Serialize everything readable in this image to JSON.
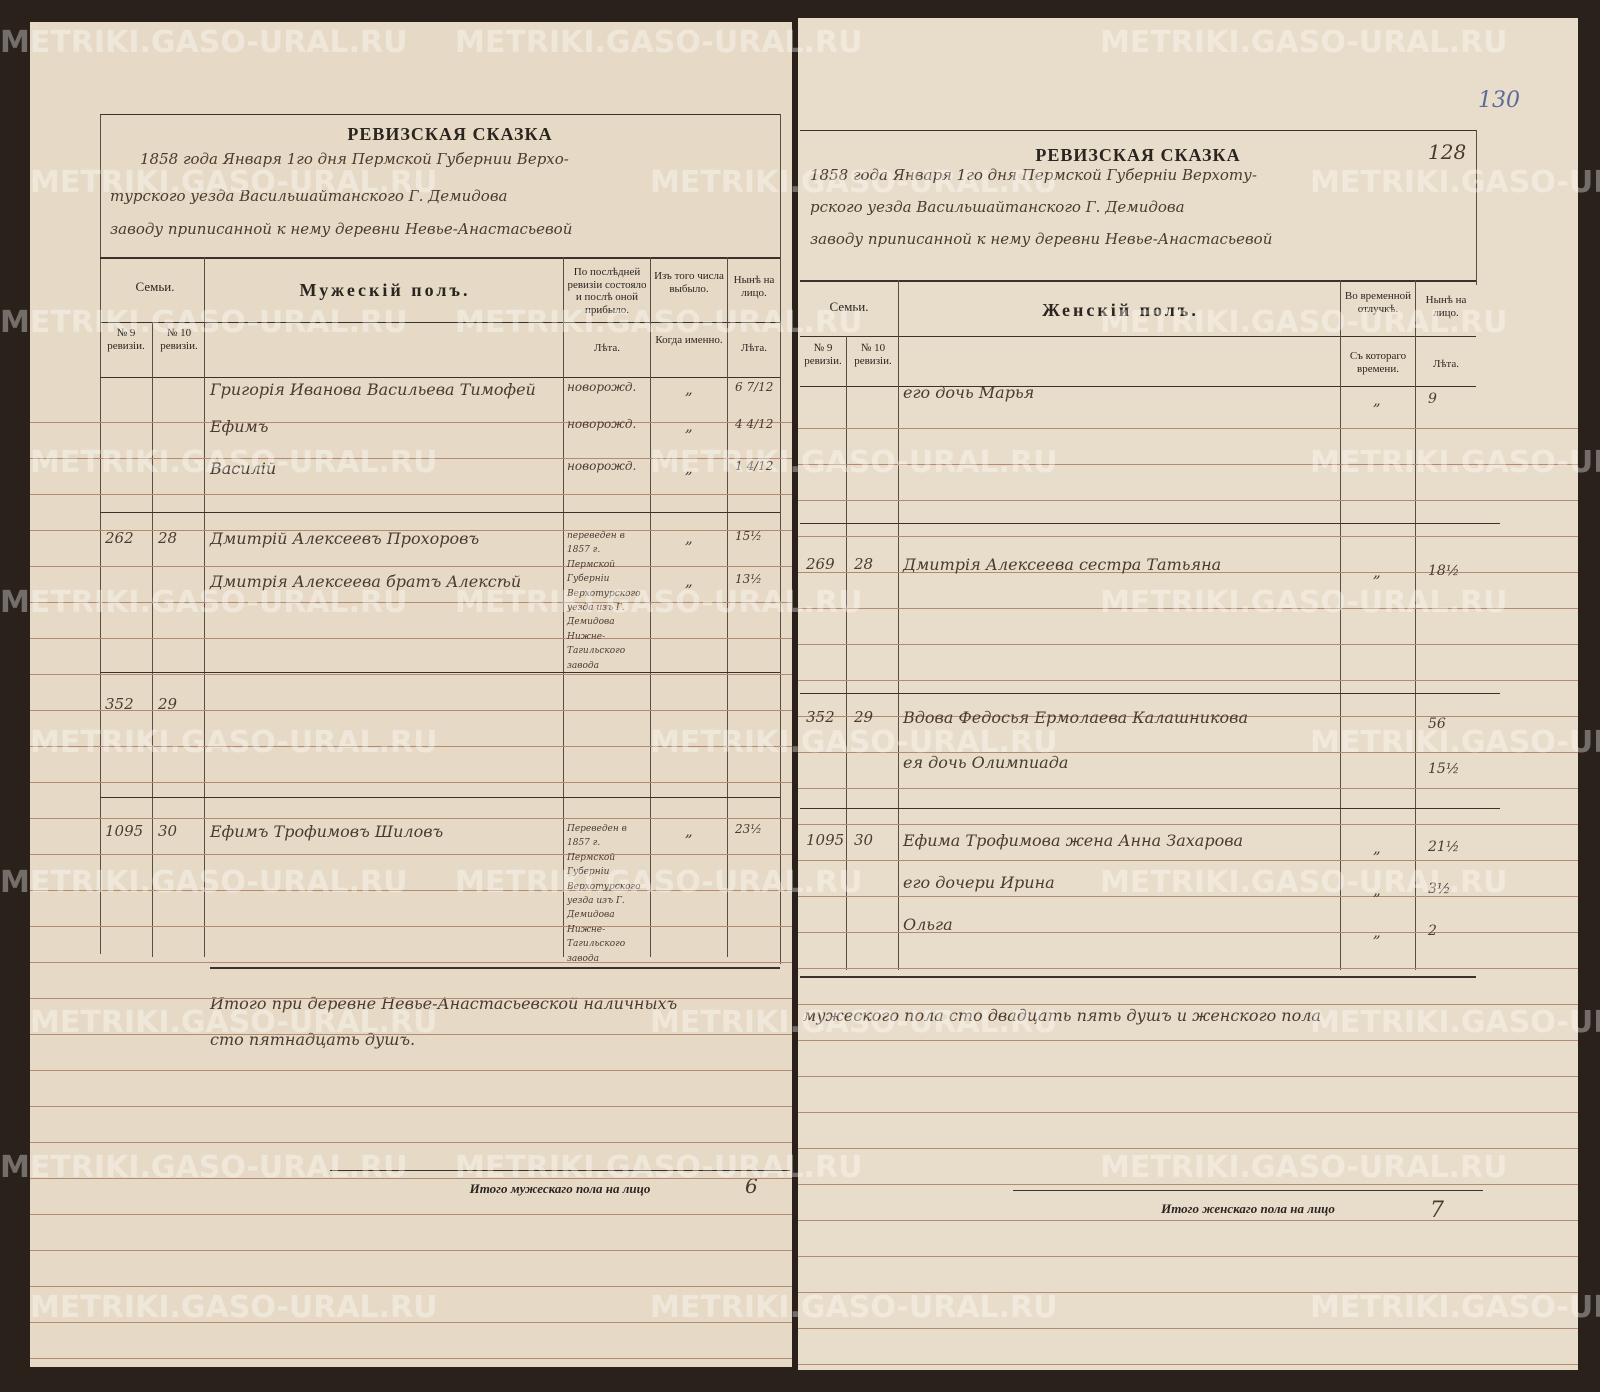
{
  "watermark": "METRIKI.GASO-URAL.RU",
  "left": {
    "title": "РЕВИЗСКАЯ СКАЗКА",
    "header_lines": [
      "1858 года Января 1го дня Пермской Губернии Верхо-",
      "турского уезда Васильшайтанского Г. Демидова",
      "заводу приписанной к нему деревни Невье-Анастасьевой"
    ],
    "col_families": "Семьи.",
    "col_rev9": "№ 9 ревизіи.",
    "col_rev10": "№ 10 ревизіи.",
    "col_sex": "Мужескій полъ.",
    "col_last": "По послѣдней ревизіи состояло и послѣ оной прибыло.",
    "col_last_sub": "Лѣта.",
    "col_left": "Изъ того числа выбыло.",
    "col_left_sub": "Когда именно.",
    "col_now": "Нынѣ на лицо.",
    "col_now_sub": "Лѣта.",
    "rows": [
      {
        "r9": "",
        "r10": "",
        "name": "Григорія Иванова Васильева Тимофей",
        "last": "новорожд.",
        "left": "„",
        "now": "6 7/12"
      },
      {
        "r9": "",
        "r10": "",
        "name": "Ефимъ",
        "last": "новорожд.",
        "left": "„",
        "now": "4 4/12"
      },
      {
        "r9": "",
        "r10": "",
        "name": "Василій",
        "last": "новорожд.",
        "left": "„",
        "now": "1 4/12"
      },
      {
        "r9": "262",
        "r10": "28",
        "name": "Дмитрій Алексеевъ Прохоровъ",
        "last": "переведен в 1857 г. Пермской Губерніи Верхотурского уезда изъ Г. Демидова Нижне-Тагильского завода",
        "left": "„",
        "now": "15½"
      },
      {
        "r9": "",
        "r10": "",
        "name": "Дмитрія Алексеева братъ Алексѣй",
        "last": "",
        "left": "„",
        "now": "13½"
      },
      {
        "r9": "352",
        "r10": "29",
        "name": "",
        "last": "",
        "left": "",
        "now": ""
      },
      {
        "r9": "1095",
        "r10": "30",
        "name": "Ефимъ Трофимовъ Шиловъ",
        "last": "Переведен в 1857 г. Пермской Губерніи Верхотурского уезда изъ Г. Демидова Нижне-Тагильского завода",
        "left": "„",
        "now": "23½"
      }
    ],
    "summary": [
      "Итого при деревне Невье-Анастасьевской наличныхъ",
      "сто пятнадцать душъ."
    ],
    "footer_label": "Итого мужескаго пола на лицо",
    "footer_value": "6"
  },
  "right": {
    "title": "РЕВИЗСКАЯ СКАЗКА",
    "page_number": "128",
    "stamp_number": "130",
    "header_lines": [
      "1858 года Января 1го дня Пермской Губерніи Верхоту-",
      "рского уезда Васильшайтанского Г. Демидова",
      "заводу приписанной к нему деревни Невье-Анастасьевой"
    ],
    "col_families": "Семьи.",
    "col_rev9": "№ 9 ревизіи.",
    "col_rev10": "№ 10 ревизіи.",
    "col_sex": "Женскій полъ.",
    "col_absent": "Во временной отлучкѣ.",
    "col_absent_sub": "Съ котораго времени.",
    "col_now": "Нынѣ на лицо.",
    "col_now_sub": "Лѣта.",
    "rows": [
      {
        "r9": "",
        "r10": "",
        "name": "его дочь Марья",
        "absent": "„",
        "now": "9"
      },
      {
        "r9": "269",
        "r10": "28",
        "name": "Дмитрія Алексеева сестра Татьяна",
        "absent": "„",
        "now": "18½"
      },
      {
        "r9": "352",
        "r10": "29",
        "name": "Вдова Федосья Ермолаева Калашникова",
        "absent": "",
        "now": "56"
      },
      {
        "r9": "",
        "r10": "",
        "name": "ея дочь Олимпиада",
        "absent": "",
        "now": "15½"
      },
      {
        "r9": "1095",
        "r10": "30",
        "name": "Ефима Трофимова жена Анна Захарова",
        "absent": "„",
        "now": "21½"
      },
      {
        "r9": "",
        "r10": "",
        "name": "его дочери Ирина",
        "absent": "„",
        "now": "3½"
      },
      {
        "r9": "",
        "r10": "",
        "name": "Ольга",
        "absent": "„",
        "now": "2"
      }
    ],
    "summary": "мужеского пола сто двадцать пять душъ и женского пола",
    "footer_label": "Итого женскаго пола на лицо",
    "footer_value": "7"
  }
}
